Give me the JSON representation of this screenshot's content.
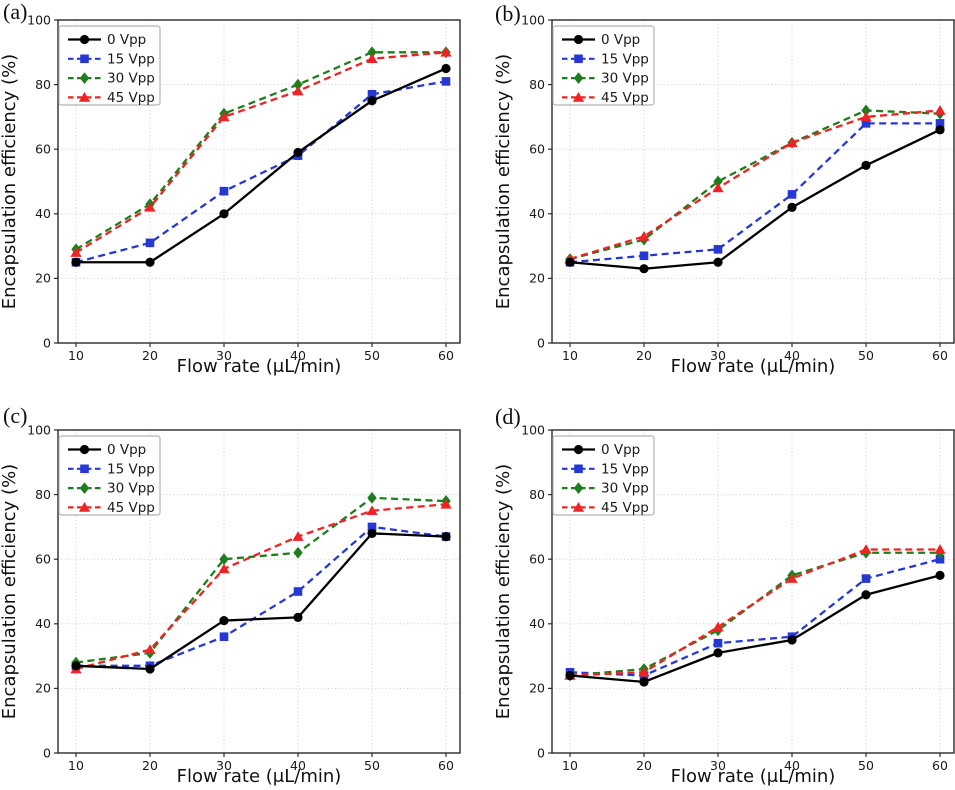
{
  "figure": {
    "background": "#ffffff",
    "grid_layout": "2x2",
    "panel_labels": [
      "(a)",
      "(b)",
      "(c)",
      "(d)"
    ]
  },
  "chart_data": [
    {
      "panel_label": "(a)",
      "type": "line",
      "xlabel": "Flow rate (μL/min)",
      "ylabel": "Encapsulation efficiency (%)",
      "x": [
        10,
        20,
        30,
        40,
        50,
        60
      ],
      "x_ticks": [
        10,
        20,
        30,
        40,
        50,
        60
      ],
      "y_ticks": [
        0,
        20,
        40,
        60,
        80,
        100
      ],
      "xlim": [
        7.5,
        62.5
      ],
      "ylim": [
        0,
        100
      ],
      "grid": true,
      "legend_position": "upper left",
      "series": [
        {
          "name": "0 Vpp",
          "color": "#000000",
          "line": "solid",
          "marker": "circle",
          "values": [
            25,
            25,
            40,
            59,
            75,
            85
          ]
        },
        {
          "name": "15 Vpp",
          "color": "#2638d4",
          "line": "dashed",
          "marker": "square",
          "values": [
            25,
            31,
            47,
            58,
            77,
            81
          ]
        },
        {
          "name": "30 Vpp",
          "color": "#1e7e1e",
          "line": "dashed",
          "marker": "diamond",
          "values": [
            29,
            43,
            71,
            80,
            90,
            90
          ]
        },
        {
          "name": "45 Vpp",
          "color": "#ee2424",
          "line": "dashed",
          "marker": "triangle",
          "values": [
            28,
            42,
            70,
            78,
            88,
            90
          ]
        }
      ]
    },
    {
      "panel_label": "(b)",
      "type": "line",
      "xlabel": "Flow rate (μL/min)",
      "ylabel": "Encapsulation efficiency (%)",
      "x": [
        10,
        20,
        30,
        40,
        50,
        60
      ],
      "x_ticks": [
        10,
        20,
        30,
        40,
        50,
        60
      ],
      "y_ticks": [
        0,
        20,
        40,
        60,
        80,
        100
      ],
      "xlim": [
        7.5,
        62.5
      ],
      "ylim": [
        0,
        100
      ],
      "grid": true,
      "legend_position": "upper left",
      "series": [
        {
          "name": "0 Vpp",
          "color": "#000000",
          "line": "solid",
          "marker": "circle",
          "values": [
            25,
            23,
            25,
            42,
            55,
            66
          ]
        },
        {
          "name": "15 Vpp",
          "color": "#2638d4",
          "line": "dashed",
          "marker": "square",
          "values": [
            25,
            27,
            29,
            46,
            68,
            68
          ]
        },
        {
          "name": "30 Vpp",
          "color": "#1e7e1e",
          "line": "dashed",
          "marker": "diamond",
          "values": [
            26,
            32,
            50,
            62,
            72,
            71
          ]
        },
        {
          "name": "45 Vpp",
          "color": "#ee2424",
          "line": "dashed",
          "marker": "triangle",
          "values": [
            26,
            33,
            48,
            62,
            70,
            72
          ]
        }
      ]
    },
    {
      "panel_label": "(c)",
      "type": "line",
      "xlabel": "Flow rate (μL/min)",
      "ylabel": "Encapsulation efficiency (%)",
      "x": [
        10,
        20,
        30,
        40,
        50,
        60
      ],
      "x_ticks": [
        10,
        20,
        30,
        40,
        50,
        60
      ],
      "y_ticks": [
        0,
        20,
        40,
        60,
        80,
        100
      ],
      "xlim": [
        7.5,
        62.5
      ],
      "ylim": [
        0,
        100
      ],
      "grid": true,
      "legend_position": "upper left",
      "series": [
        {
          "name": "0 Vpp",
          "color": "#000000",
          "line": "solid",
          "marker": "circle",
          "values": [
            27,
            26,
            41,
            42,
            68,
            67
          ]
        },
        {
          "name": "15 Vpp",
          "color": "#2638d4",
          "line": "dashed",
          "marker": "square",
          "values": [
            27,
            27,
            36,
            50,
            70,
            67
          ]
        },
        {
          "name": "30 Vpp",
          "color": "#1e7e1e",
          "line": "dashed",
          "marker": "diamond",
          "values": [
            28,
            31,
            60,
            62,
            79,
            78
          ]
        },
        {
          "name": "45 Vpp",
          "color": "#ee2424",
          "line": "dashed",
          "marker": "triangle",
          "values": [
            26,
            32,
            57,
            67,
            75,
            77
          ]
        }
      ]
    },
    {
      "panel_label": "(d)",
      "type": "line",
      "xlabel": "Flow rate (μL/min)",
      "ylabel": "Encapsulation efficiency (%)",
      "x": [
        10,
        20,
        30,
        40,
        50,
        60
      ],
      "x_ticks": [
        10,
        20,
        30,
        40,
        50,
        60
      ],
      "y_ticks": [
        0,
        20,
        40,
        60,
        80,
        100
      ],
      "xlim": [
        7.5,
        62.5
      ],
      "ylim": [
        0,
        100
      ],
      "grid": true,
      "legend_position": "upper left",
      "series": [
        {
          "name": "0 Vpp",
          "color": "#000000",
          "line": "solid",
          "marker": "circle",
          "values": [
            24,
            22,
            31,
            35,
            49,
            55
          ]
        },
        {
          "name": "15 Vpp",
          "color": "#2638d4",
          "line": "dashed",
          "marker": "square",
          "values": [
            25,
            24,
            34,
            36,
            54,
            60
          ]
        },
        {
          "name": "30 Vpp",
          "color": "#1e7e1e",
          "line": "dashed",
          "marker": "diamond",
          "values": [
            24,
            26,
            38,
            55,
            62,
            62
          ]
        },
        {
          "name": "45 Vpp",
          "color": "#ee2424",
          "line": "dashed",
          "marker": "triangle",
          "values": [
            24,
            25,
            39,
            54,
            63,
            63
          ]
        }
      ]
    }
  ]
}
